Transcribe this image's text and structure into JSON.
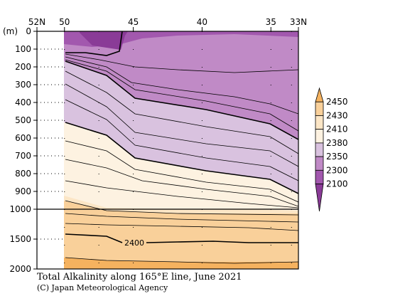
{
  "chart_data": {
    "type": "contour",
    "title": "Total Alkalinity along 165°E line, June 2021",
    "credit": "(C) Japan Meteorological Agency",
    "x_axis": {
      "ticks": [
        {
          "value": 52,
          "label": "52N"
        },
        {
          "value": 50,
          "label": "50"
        },
        {
          "value": 45,
          "label": "45"
        },
        {
          "value": 40,
          "label": "40"
        },
        {
          "value": 35,
          "label": "35"
        },
        {
          "value": 33,
          "label": "33N"
        }
      ],
      "range": [
        52,
        33
      ]
    },
    "y_axis": {
      "unit": "(m)",
      "upper_ticks": [
        0,
        100,
        200,
        300,
        400,
        500,
        600,
        700,
        800,
        900,
        1000
      ],
      "lower_ticks": [
        1000,
        1500,
        2000
      ],
      "range": [
        0,
        2000
      ]
    },
    "data_coverage_lat": [
      50,
      33
    ],
    "station_lats": [
      50,
      47.5,
      45,
      40,
      35,
      33.5
    ],
    "colorbar": {
      "levels": [
        "2450",
        "2430",
        "2410",
        "2380",
        "2350",
        "2300",
        "2100"
      ],
      "colors": [
        "#f5b25f",
        "#f9d09a",
        "#fce6c6",
        "#fdf2e1",
        "#d9c2df",
        "#c08ac6",
        "#a258ae",
        "#8a3b97"
      ]
    },
    "contour_labels": [
      {
        "text": "2400",
        "lat": 44.5,
        "depth": 1550
      }
    ]
  }
}
